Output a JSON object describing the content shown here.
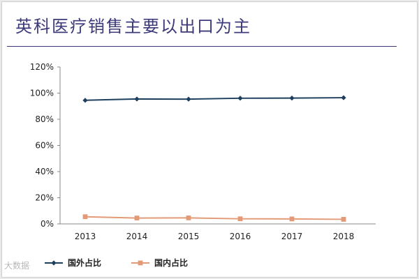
{
  "title": "英科医疗销售主要以出口为主",
  "watermark": "大数据",
  "chart_data": {
    "type": "line",
    "x": [
      "2013",
      "2014",
      "2015",
      "2016",
      "2017",
      "2018"
    ],
    "series": [
      {
        "name": "国外占比",
        "values": [
          94.5,
          95.5,
          95.4,
          96.1,
          96.2,
          96.5
        ],
        "color": "#1f3f5f",
        "marker": "diamond"
      },
      {
        "name": "国内占比",
        "values": [
          5.5,
          4.5,
          4.6,
          3.9,
          3.8,
          3.5
        ],
        "color": "#e39a77",
        "marker": "square"
      }
    ],
    "yticks": [
      "0%",
      "20%",
      "40%",
      "60%",
      "80%",
      "100%",
      "120%"
    ],
    "ylim": [
      0,
      120
    ],
    "grid": false,
    "legend": "bottom-left"
  }
}
